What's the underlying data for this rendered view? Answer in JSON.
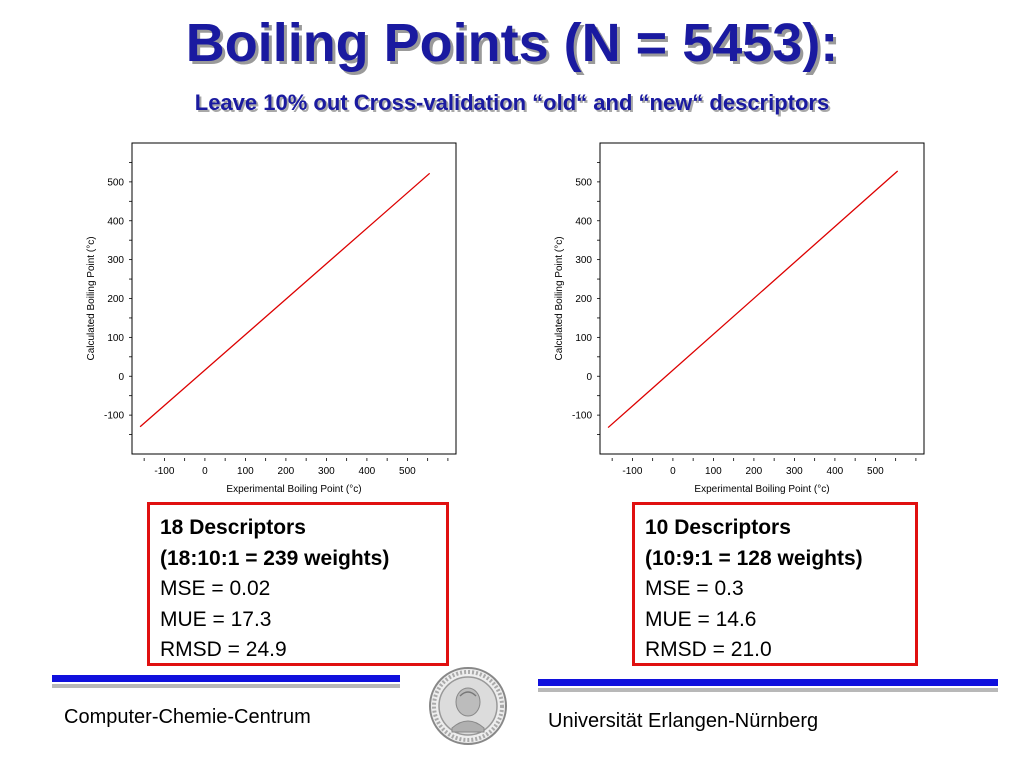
{
  "slide": {
    "title": "Boiling Points (N = 5453):",
    "subtitle": "Leave 10% out Cross-validation “old“ and “new“ descriptors"
  },
  "chart_data": [
    {
      "type": "line",
      "title": "",
      "xlabel": "Experimental Boiling Point (°c)",
      "ylabel": "Calculated Boiling Point (°c)",
      "xlim": [
        -180,
        620
      ],
      "ylim": [
        -200,
        600
      ],
      "x_ticks": [
        "-100",
        "0",
        "100",
        "200",
        "300",
        "400",
        "500"
      ],
      "y_ticks": [
        "500",
        "400",
        "300",
        "200",
        "100",
        "0",
        "-100"
      ],
      "x_tick_values": [
        -100,
        0,
        100,
        200,
        300,
        400,
        500
      ],
      "y_tick_values": [
        500,
        400,
        300,
        200,
        100,
        0,
        -100
      ],
      "grid": false,
      "series": [
        {
          "color": "#dd0000",
          "x": [
            -160,
            555
          ],
          "y": [
            -130,
            522
          ]
        }
      ]
    },
    {
      "type": "line",
      "title": "",
      "xlabel": "Experimental Boiling Point (°c)",
      "ylabel": "Calculated Boiling Point (°c)",
      "xlim": [
        -180,
        620
      ],
      "ylim": [
        -200,
        600
      ],
      "x_ticks": [
        "-100",
        "0",
        "100",
        "200",
        "300",
        "400",
        "500"
      ],
      "y_ticks": [
        "500",
        "400",
        "300",
        "200",
        "100",
        "0",
        "-100"
      ],
      "x_tick_values": [
        -100,
        0,
        100,
        200,
        300,
        400,
        500
      ],
      "y_tick_values": [
        500,
        400,
        300,
        200,
        100,
        0,
        -100
      ],
      "grid": false,
      "series": [
        {
          "color": "#dd0000",
          "x": [
            -160,
            555
          ],
          "y": [
            -132,
            528
          ]
        }
      ]
    }
  ],
  "stats_left": {
    "heading": "18 Descriptors",
    "weights": "(18:10:1 = 239 weights)",
    "mse": "MSE = 0.02",
    "mue": "MUE = 17.3",
    "rmsd": "RMSD = 24.9"
  },
  "stats_right": {
    "heading": "10 Descriptors",
    "weights": "(10:9:1 = 128 weights)",
    "mse": "MSE = 0.3",
    "mue": "MUE = 14.6",
    "rmsd": "RMSD = 21.0"
  },
  "footer": {
    "left": "Computer-Chemie-Centrum",
    "right": "Universität Erlangen-Nürnberg",
    "seal_icon": "university-seal-icon"
  },
  "colors": {
    "title": "#1a1aa0",
    "line": "#dd0000",
    "box_border": "#e01010",
    "rule": "#1010dd"
  }
}
